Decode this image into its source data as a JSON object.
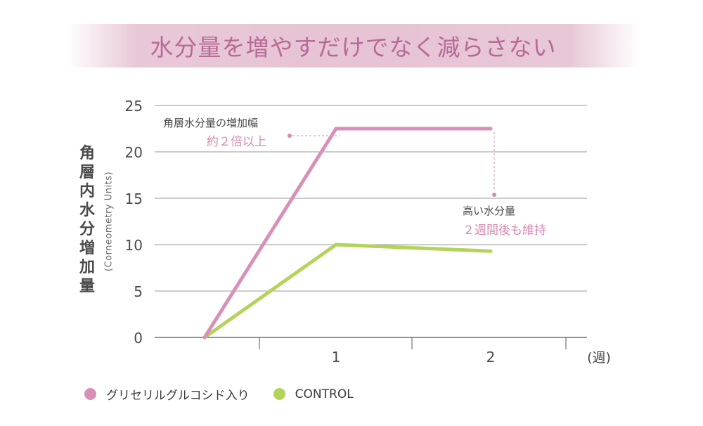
{
  "title": "水分量を増やすだけでなく減らさない",
  "chart_data": {
    "type": "line",
    "ylabel": "角層内水分増加量",
    "ylabel_sub": "(Corneometry Units)",
    "xlabel_unit": "(週)",
    "ylim": [
      0,
      25
    ],
    "yticks": [
      "0",
      "5",
      "10",
      "15",
      "20",
      "25"
    ],
    "x": [
      0,
      1,
      2
    ],
    "xtick_labels": [
      "",
      "1",
      "2"
    ],
    "series": [
      {
        "name": "グリセリルグルコシド入り",
        "color": "#d990b8",
        "values": [
          0,
          22.5,
          22.5
        ]
      },
      {
        "name": "CONTROL",
        "color": "#b4d35a",
        "values": [
          0,
          10,
          9.3
        ]
      }
    ],
    "annotations": [
      {
        "line1": "角層水分量の増加幅",
        "line2": "約２倍以上"
      },
      {
        "line1": "高い水分量",
        "line2": "２週間後も維持"
      }
    ]
  }
}
